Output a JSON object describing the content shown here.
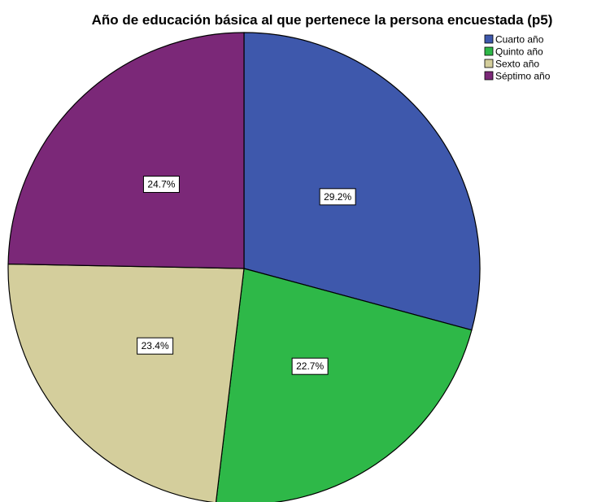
{
  "chart_data": {
    "type": "pie",
    "title": "Año de educación básica al que pertenece la persona encuestada (p5)",
    "legend_position": "top-right",
    "slices": [
      {
        "label": "Cuarto año",
        "value": 29.2,
        "display": "29.2%",
        "color": "#3E58AC"
      },
      {
        "label": "Quinto año",
        "value": 22.7,
        "display": "22.7%",
        "color": "#2EB848"
      },
      {
        "label": "Sexto año",
        "value": 23.4,
        "display": "23.4%",
        "color": "#D4CE9C"
      },
      {
        "label": "Séptimo año",
        "value": 24.7,
        "display": "24.7%",
        "color": "#7B2878"
      }
    ]
  }
}
